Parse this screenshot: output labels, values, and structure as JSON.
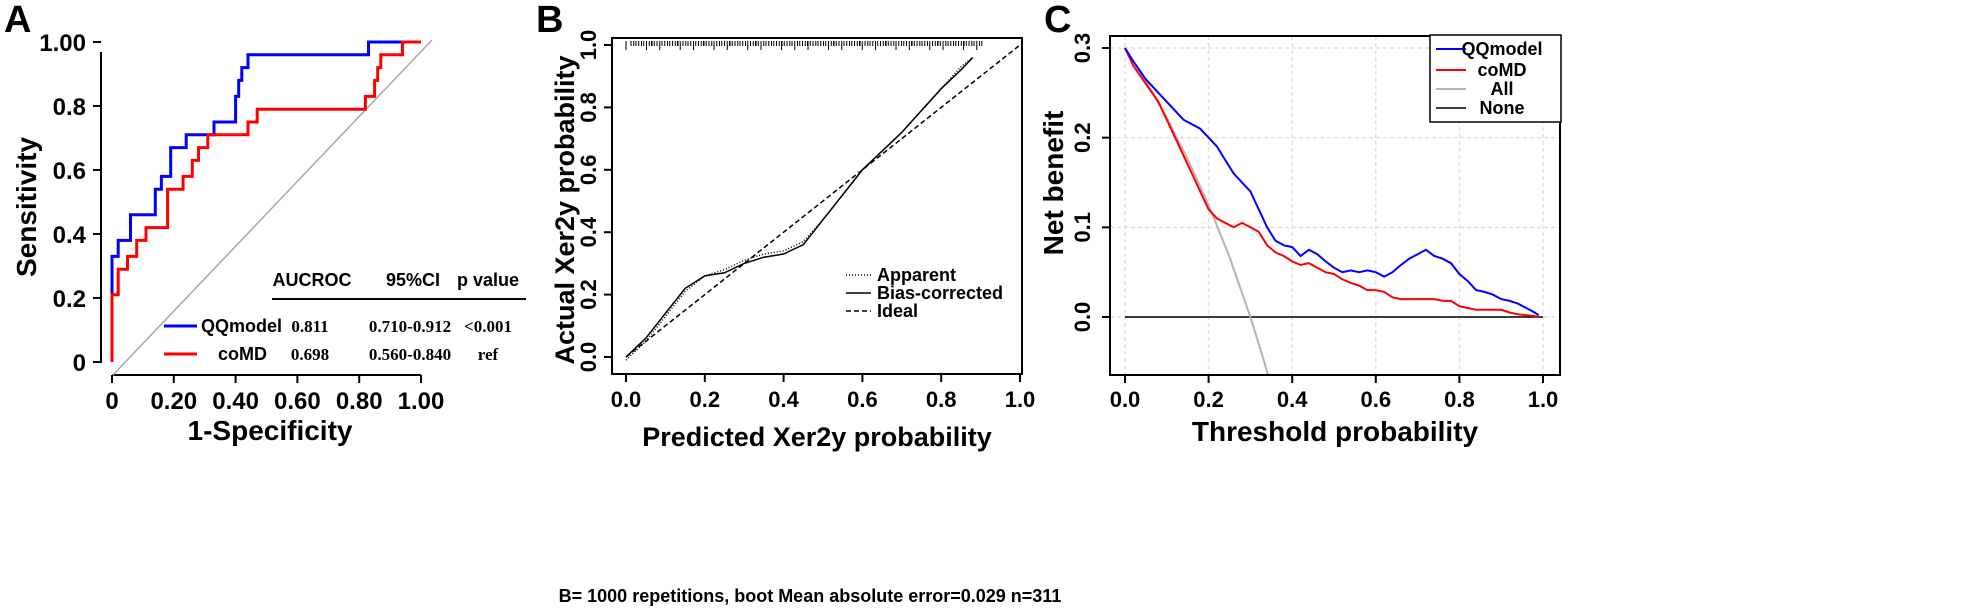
{
  "chart_data": [
    {
      "panel": "A",
      "type": "line",
      "xlabel": "1-Specificity",
      "ylabel": "Sensitivity",
      "xlim": [
        0,
        1
      ],
      "ylim": [
        0,
        1
      ],
      "xticks": [
        "0",
        "0.20",
        "0.40",
        "0.60",
        "0.80",
        "1.00"
      ],
      "yticks": [
        "0",
        "0.2",
        "0.4",
        "0.6",
        "0.8",
        "1.00"
      ],
      "series": [
        {
          "name": "QQmodel",
          "color": "#0000ff",
          "x": [
            0,
            0,
            0,
            0.02,
            0.02,
            0.06,
            0.06,
            0.14,
            0.14,
            0.16,
            0.16,
            0.19,
            0.19,
            0.24,
            0.24,
            0.33,
            0.33,
            0.4,
            0.4,
            0.41,
            0.41,
            0.42,
            0.42,
            0.44,
            0.44,
            0.83,
            0.83,
            0.95,
            0.95,
            1.0
          ],
          "y": [
            0,
            0.21,
            0.33,
            0.33,
            0.38,
            0.38,
            0.46,
            0.46,
            0.54,
            0.54,
            0.58,
            0.58,
            0.67,
            0.67,
            0.71,
            0.71,
            0.75,
            0.75,
            0.83,
            0.83,
            0.88,
            0.88,
            0.92,
            0.92,
            0.96,
            0.96,
            1.0,
            1.0,
            1.0,
            1.0
          ]
        },
        {
          "name": "coMD",
          "color": "#ff0000",
          "x": [
            0,
            0,
            0.02,
            0.02,
            0.05,
            0.05,
            0.08,
            0.08,
            0.11,
            0.11,
            0.18,
            0.18,
            0.23,
            0.23,
            0.26,
            0.26,
            0.28,
            0.28,
            0.31,
            0.31,
            0.44,
            0.44,
            0.47,
            0.47,
            0.82,
            0.82,
            0.85,
            0.85,
            0.86,
            0.86,
            0.87,
            0.87,
            0.94,
            0.94,
            1.0
          ],
          "y": [
            0,
            0.21,
            0.21,
            0.29,
            0.29,
            0.33,
            0.33,
            0.38,
            0.38,
            0.42,
            0.42,
            0.54,
            0.54,
            0.58,
            0.58,
            0.63,
            0.63,
            0.67,
            0.67,
            0.71,
            0.71,
            0.75,
            0.75,
            0.79,
            0.79,
            0.83,
            0.83,
            0.88,
            0.88,
            0.92,
            0.92,
            0.96,
            0.96,
            1.0,
            1.0
          ]
        }
      ],
      "diagonal": true,
      "table": {
        "headers": [
          "AUCROC",
          "95%CI",
          "p value"
        ],
        "rows": [
          {
            "name": "QQmodel",
            "auc": "0.811",
            "ci": "0.710-0.912",
            "p": "<0.001"
          },
          {
            "name": "coMD",
            "auc": "0.698",
            "ci": "0.560-0.840",
            "p": "ref"
          }
        ]
      }
    },
    {
      "panel": "B",
      "type": "line",
      "xlabel": "Predicted Xer2y probability",
      "ylabel": "Actual Xer2y probability",
      "xlim": [
        0,
        1
      ],
      "ylim": [
        0,
        1
      ],
      "xticks": [
        "0.0",
        "0.2",
        "0.4",
        "0.6",
        "0.8",
        "1.0"
      ],
      "yticks": [
        "0.0",
        "0.2",
        "0.4",
        "0.6",
        "0.8",
        "1.0"
      ],
      "series": [
        {
          "name": "Apparent",
          "style": "dotted",
          "x": [
            0.0,
            0.05,
            0.1,
            0.15,
            0.2,
            0.25,
            0.3,
            0.35,
            0.4,
            0.45,
            0.5,
            0.55,
            0.6,
            0.65,
            0.7,
            0.75,
            0.8,
            0.85,
            0.88
          ],
          "y": [
            -0.01,
            0.05,
            0.13,
            0.21,
            0.26,
            0.28,
            0.31,
            0.33,
            0.34,
            0.37,
            0.44,
            0.52,
            0.6,
            0.66,
            0.72,
            0.79,
            0.86,
            0.93,
            0.96
          ]
        },
        {
          "name": "Bias-corrected",
          "style": "solid",
          "x": [
            0.0,
            0.05,
            0.1,
            0.15,
            0.2,
            0.25,
            0.3,
            0.35,
            0.4,
            0.45,
            0.5,
            0.55,
            0.6,
            0.65,
            0.7,
            0.75,
            0.8,
            0.85,
            0.88
          ],
          "y": [
            0.0,
            0.06,
            0.14,
            0.22,
            0.26,
            0.27,
            0.3,
            0.32,
            0.33,
            0.36,
            0.44,
            0.52,
            0.6,
            0.66,
            0.72,
            0.79,
            0.86,
            0.92,
            0.96
          ]
        },
        {
          "name": "Ideal",
          "style": "dashed",
          "x": [
            0,
            1
          ],
          "y": [
            0,
            1
          ]
        }
      ],
      "subtitle": "B= 1000 repetitions, boot  Mean absolute error=0.029 n=311"
    },
    {
      "panel": "C",
      "type": "line",
      "xlabel": "Threshold probability",
      "ylabel": "Net benefit",
      "xlim": [
        0,
        1
      ],
      "ylim": [
        -0.05,
        0.3
      ],
      "xticks": [
        "0.0",
        "0.2",
        "0.4",
        "0.6",
        "0.8",
        "1.0"
      ],
      "yticks": [
        "0.0",
        "0.1",
        "0.2",
        "0.3"
      ],
      "grid": true,
      "legend_position": "top-right",
      "series": [
        {
          "name": "QQmodel",
          "color": "#0000ff",
          "x": [
            0,
            0.02,
            0.05,
            0.08,
            0.1,
            0.12,
            0.14,
            0.16,
            0.18,
            0.2,
            0.22,
            0.24,
            0.26,
            0.28,
            0.3,
            0.32,
            0.34,
            0.36,
            0.38,
            0.4,
            0.42,
            0.44,
            0.46,
            0.48,
            0.5,
            0.52,
            0.54,
            0.56,
            0.58,
            0.6,
            0.62,
            0.64,
            0.66,
            0.68,
            0.7,
            0.72,
            0.74,
            0.76,
            0.78,
            0.8,
            0.82,
            0.84,
            0.86,
            0.88,
            0.9,
            0.92,
            0.94,
            0.96,
            0.98,
            0.99
          ],
          "y": [
            0.3,
            0.285,
            0.265,
            0.25,
            0.24,
            0.23,
            0.22,
            0.215,
            0.21,
            0.2,
            0.19,
            0.175,
            0.16,
            0.15,
            0.14,
            0.12,
            0.1,
            0.085,
            0.08,
            0.078,
            0.068,
            0.075,
            0.07,
            0.062,
            0.055,
            0.05,
            0.052,
            0.05,
            0.052,
            0.05,
            0.045,
            0.05,
            0.058,
            0.065,
            0.07,
            0.075,
            0.068,
            0.065,
            0.06,
            0.048,
            0.04,
            0.03,
            0.028,
            0.025,
            0.02,
            0.018,
            0.015,
            0.01,
            0.005,
            0.002
          ]
        },
        {
          "name": "coMD",
          "color": "#ff0000",
          "x": [
            0,
            0.02,
            0.05,
            0.08,
            0.1,
            0.12,
            0.14,
            0.16,
            0.18,
            0.2,
            0.22,
            0.24,
            0.26,
            0.28,
            0.3,
            0.32,
            0.34,
            0.36,
            0.38,
            0.4,
            0.42,
            0.44,
            0.46,
            0.48,
            0.5,
            0.52,
            0.54,
            0.56,
            0.58,
            0.6,
            0.62,
            0.64,
            0.66,
            0.68,
            0.7,
            0.72,
            0.74,
            0.76,
            0.78,
            0.8,
            0.82,
            0.84,
            0.86,
            0.88,
            0.9,
            0.92,
            0.94,
            0.96,
            0.98,
            0.99
          ],
          "y": [
            0.3,
            0.28,
            0.26,
            0.24,
            0.22,
            0.2,
            0.18,
            0.16,
            0.14,
            0.12,
            0.11,
            0.105,
            0.1,
            0.105,
            0.1,
            0.095,
            0.08,
            0.072,
            0.068,
            0.062,
            0.058,
            0.06,
            0.055,
            0.05,
            0.048,
            0.042,
            0.038,
            0.035,
            0.03,
            0.03,
            0.028,
            0.022,
            0.02,
            0.02,
            0.02,
            0.02,
            0.02,
            0.018,
            0.018,
            0.012,
            0.01,
            0.008,
            0.008,
            0.008,
            0.008,
            0.005,
            0.003,
            0.002,
            0.001,
            0.0
          ]
        },
        {
          "name": "All",
          "color": "#b4b4b4",
          "x": [
            0,
            0.05,
            0.1,
            0.15,
            0.2,
            0.25,
            0.3,
            0.33,
            0.35
          ],
          "y": [
            0.3,
            0.263,
            0.222,
            0.176,
            0.125,
            0.067,
            0.0,
            -0.045,
            -0.077
          ]
        },
        {
          "name": "None",
          "color": "#000000",
          "x": [
            0,
            1
          ],
          "y": [
            0,
            0
          ]
        }
      ]
    }
  ]
}
